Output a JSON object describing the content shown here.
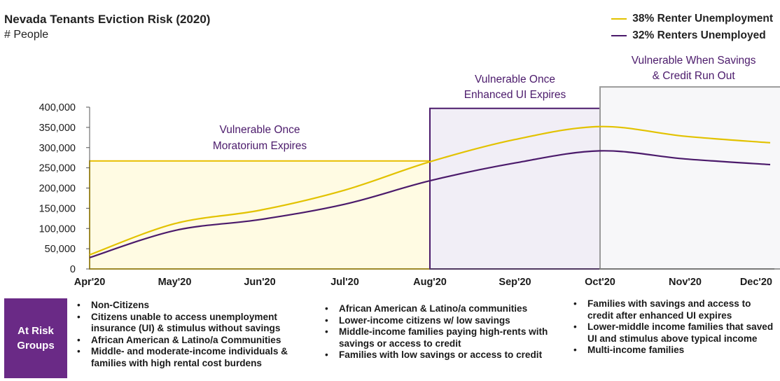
{
  "title": "Nevada Tenants Eviction Risk (2020)",
  "subtitle": "# People",
  "colors": {
    "series1": "#e2c200",
    "series2": "#4b1a6b",
    "phase1_fill": "#fffbe3",
    "phase1_border": "#e8bf00",
    "phase2_fill": "#f1eef6",
    "phase2_border": "#4b1a6b",
    "phase3_fill": "#f7f7f9",
    "phase3_border": "#9a9a9a",
    "phase_label": "#4b1a6b",
    "badge_bg": "#6a2a86"
  },
  "chart_data": {
    "type": "line",
    "title": "Nevada Tenants Eviction Risk (2020)",
    "ylabel": "# People",
    "x": [
      "Apr'20",
      "May'20",
      "Jun'20",
      "Jul'20",
      "Aug'20",
      "Sep'20",
      "Oct'20",
      "Nov'20",
      "Dec'20"
    ],
    "ylim": [
      0,
      400000
    ],
    "yticks": [
      "0",
      "50,000",
      "100,000",
      "150,000",
      "200,000",
      "250,000",
      "300,000",
      "350,000",
      "400,000"
    ],
    "grid": false,
    "legend_position": "top-right",
    "series": [
      {
        "name": "38% Renter Unemployment",
        "values": [
          35000,
          112000,
          145000,
          195000,
          265000,
          320000,
          352000,
          328000,
          312000
        ]
      },
      {
        "name": "32% Renters Unemployed",
        "values": [
          28000,
          95000,
          122000,
          160000,
          218000,
          262000,
          292000,
          272000,
          258000
        ]
      }
    ],
    "phases": [
      {
        "label_lines": [
          "Vulnerable Once",
          "Moratorium Expires"
        ],
        "x_start": 0,
        "x_end": 4,
        "y_top": 267000
      },
      {
        "label_lines": [
          "Vulnerable Once",
          "Enhanced UI Expires"
        ],
        "x_start": 4,
        "x_end": 6,
        "y_top": 397000
      },
      {
        "label_lines": [
          "Vulnerable When Savings",
          "& Credit Run Out"
        ],
        "x_start": 6,
        "x_end": 8.2,
        "y_top": 450000
      }
    ]
  },
  "at_risk": {
    "label": "At Risk Groups",
    "groups": [
      {
        "items": [
          "Non-Citizens",
          "Citizens unable to access unemployment insurance (UI) & stimulus without savings",
          "African American & Latino/a Communities",
          "Middle- and moderate-income individuals & families with high rental cost burdens"
        ]
      },
      {
        "items": [
          "African American & Latino/a communities",
          "Lower-income citizens w/ low savings",
          "Middle-income families paying high-rents with savings or access to credit",
          "Families with low savings or access to credit"
        ]
      },
      {
        "items": [
          "Families with savings and access to credit after enhanced UI expires",
          "Lower-middle income families that saved UI and stimulus above typical income",
          "Multi-income families"
        ]
      }
    ]
  }
}
